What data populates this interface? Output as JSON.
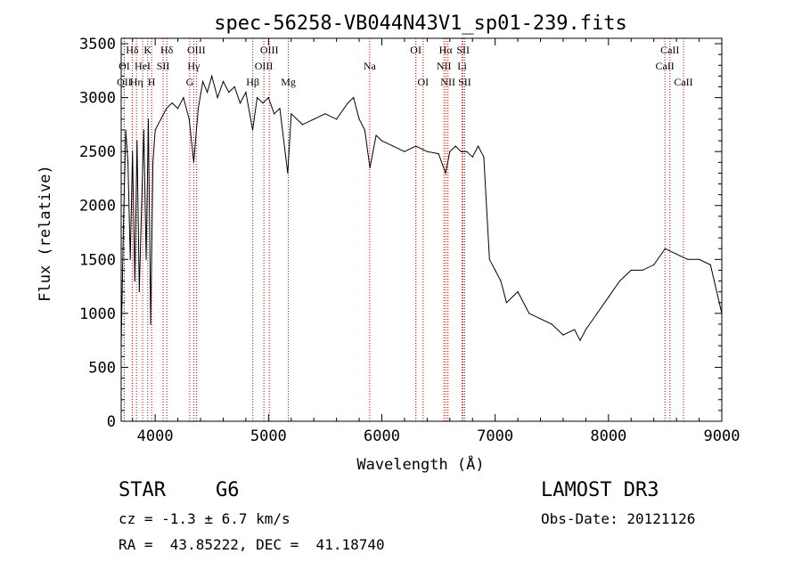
{
  "chart_data": {
    "type": "line",
    "title": "spec-56258-VB044N43V1_sp01-239.fits",
    "xlabel": "Wavelength (Å)",
    "ylabel": "Flux (relative)",
    "xlim": [
      3700,
      9000
    ],
    "ylim": [
      0,
      3550
    ],
    "xticks": [
      4000,
      5000,
      6000,
      7000,
      8000,
      9000
    ],
    "yticks": [
      0,
      500,
      1000,
      1500,
      2000,
      2500,
      3000,
      3500
    ],
    "series": [
      {
        "name": "flux",
        "color": "#000000",
        "x": [
          3700,
          3720,
          3740,
          3760,
          3780,
          3800,
          3820,
          3840,
          3860,
          3880,
          3900,
          3920,
          3940,
          3960,
          3980,
          4000,
          4050,
          4100,
          4150,
          4200,
          4250,
          4300,
          4340,
          4380,
          4420,
          4460,
          4500,
          4550,
          4600,
          4650,
          4700,
          4750,
          4800,
          4860,
          4900,
          4950,
          5000,
          5050,
          5100,
          5170,
          5200,
          5300,
          5400,
          5500,
          5600,
          5700,
          5750,
          5800,
          5850,
          5895,
          5950,
          6000,
          6100,
          6200,
          6300,
          6400,
          6500,
          6563,
          6600,
          6650,
          6700,
          6750,
          6800,
          6850,
          6900,
          6950,
          7000,
          7050,
          7100,
          7200,
          7300,
          7400,
          7500,
          7600,
          7700,
          7750,
          7800,
          7900,
          8000,
          8100,
          8200,
          8300,
          8400,
          8500,
          8600,
          8700,
          8800,
          8900,
          9000
        ],
        "y": [
          700,
          1800,
          2700,
          2400,
          1500,
          2500,
          1300,
          2600,
          1200,
          2000,
          2700,
          1500,
          2800,
          900,
          2400,
          2700,
          2800,
          2900,
          2950,
          2900,
          3000,
          2800,
          2400,
          2900,
          3150,
          3050,
          3200,
          3000,
          3150,
          3050,
          3100,
          2950,
          3050,
          2700,
          3000,
          2950,
          3000,
          2850,
          2900,
          2300,
          2850,
          2750,
          2800,
          2850,
          2800,
          2950,
          3000,
          2800,
          2700,
          2350,
          2650,
          2600,
          2550,
          2500,
          2550,
          2500,
          2480,
          2300,
          2500,
          2550,
          2500,
          2500,
          2450,
          2550,
          2450,
          1500,
          1400,
          1300,
          1100,
          1200,
          1000,
          950,
          900,
          800,
          850,
          750,
          850,
          1000,
          1150,
          1300,
          1400,
          1400,
          1450,
          1600,
          1550,
          1500,
          1500,
          1450,
          1000
        ]
      }
    ],
    "lines": [
      {
        "name": "Hδ",
        "wavelength": 3798,
        "row": 0,
        "color": "#b40000"
      },
      {
        "name": "K",
        "wavelength": 3934,
        "row": 0,
        "color": "#b40000"
      },
      {
        "name": "Hδ",
        "wavelength": 4102,
        "row": 0,
        "color": "#b40000"
      },
      {
        "name": "OIII",
        "wavelength": 4363,
        "row": 0,
        "color": "#b40000"
      },
      {
        "name": "OIII",
        "wavelength": 5007,
        "row": 0,
        "color": "#b40000"
      },
      {
        "name": "OI",
        "wavelength": 6300,
        "row": 0,
        "color": "#b40000"
      },
      {
        "name": "Hα",
        "wavelength": 6563,
        "row": 0,
        "color": "#b40000"
      },
      {
        "name": "SII",
        "wavelength": 6717,
        "row": 0,
        "color": "#b40000"
      },
      {
        "name": "CaII",
        "wavelength": 8542,
        "row": 0,
        "color": "#b40000"
      },
      {
        "name": "OI",
        "wavelength": 3727,
        "row": 1,
        "color": "#b40000"
      },
      {
        "name": "HeI",
        "wavelength": 3889,
        "row": 1,
        "color": "#b40000"
      },
      {
        "name": "SII",
        "wavelength": 4070,
        "row": 1,
        "color": "#b40000"
      },
      {
        "name": "Hγ",
        "wavelength": 4340,
        "row": 1,
        "color": "#b40000"
      },
      {
        "name": "OIII",
        "wavelength": 4959,
        "row": 1,
        "color": "#b40000"
      },
      {
        "name": "Na",
        "wavelength": 5893,
        "row": 1,
        "color": "#b40000"
      },
      {
        "name": "NII",
        "wavelength": 6548,
        "row": 1,
        "color": "#b40000"
      },
      {
        "name": "Li",
        "wavelength": 6708,
        "row": 1,
        "color": "#b40000"
      },
      {
        "name": "CaII",
        "wavelength": 8498,
        "row": 1,
        "color": "#b40000"
      },
      {
        "name": "OII",
        "wavelength": 3727,
        "row": 2,
        "color": "#b40000"
      },
      {
        "name": "Hη",
        "wavelength": 3835,
        "row": 2,
        "color": "#b40000"
      },
      {
        "name": "H",
        "wavelength": 3968,
        "row": 2,
        "color": "#b40000"
      },
      {
        "name": "G",
        "wavelength": 4305,
        "row": 2,
        "color": "#b40000"
      },
      {
        "name": "Hβ",
        "wavelength": 4861,
        "row": 2,
        "color": "#b40000"
      },
      {
        "name": "Mg",
        "wavelength": 5175,
        "row": 2,
        "color": "#b40000"
      },
      {
        "name": "OI",
        "wavelength": 6364,
        "row": 2,
        "color": "#b40000"
      },
      {
        "name": "NII",
        "wavelength": 6583,
        "row": 2,
        "color": "#b40000"
      },
      {
        "name": "SII",
        "wavelength": 6731,
        "row": 2,
        "color": "#b40000"
      },
      {
        "name": "CaII",
        "wavelength": 8662,
        "row": 2,
        "color": "#b40000"
      }
    ]
  },
  "info": {
    "object_class": "STAR",
    "subclass": "G6",
    "redshift": "cz = -1.3 ± 6.7 km/s",
    "coords": "RA =  43.85222, DEC =  41.18740",
    "survey": "LAMOST DR3",
    "obs_date": "Obs-Date: 20121126"
  }
}
